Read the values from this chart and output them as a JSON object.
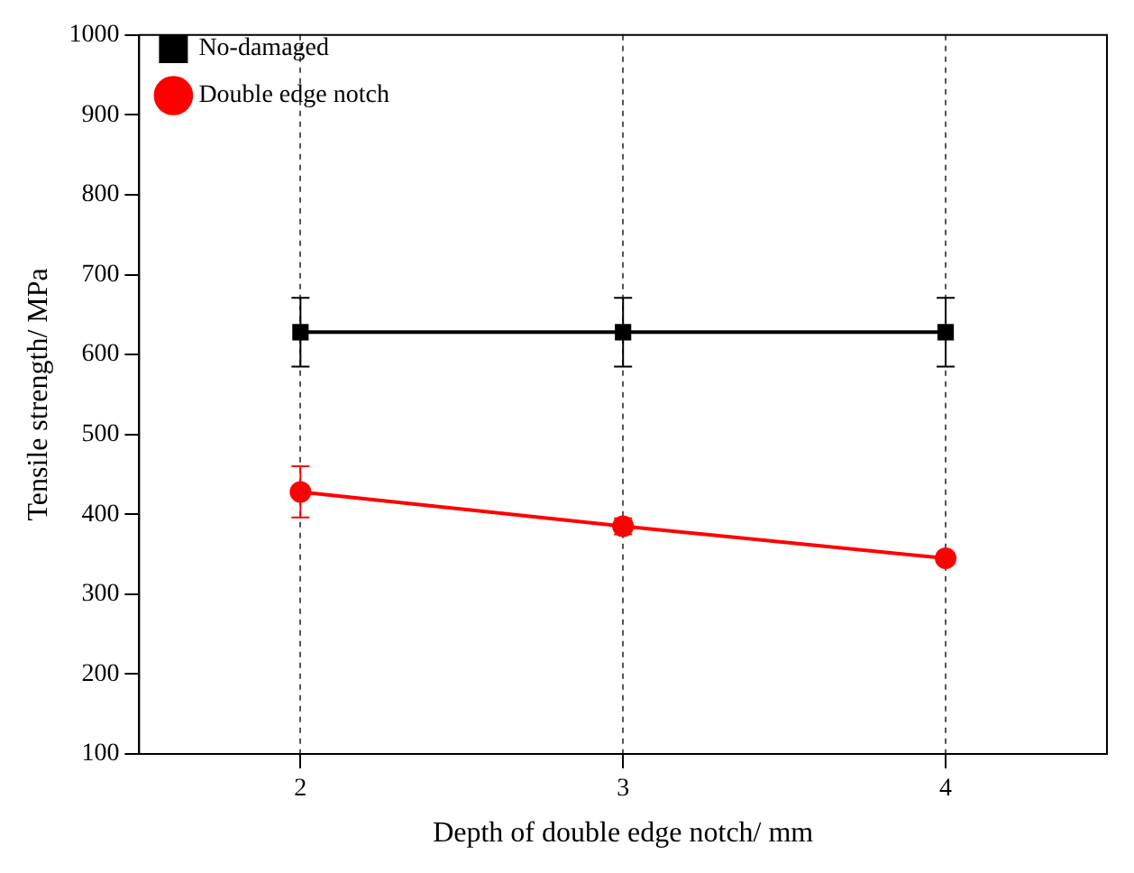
{
  "chart_data": {
    "type": "line",
    "xlabel": "Depth of double edge notch/ mm",
    "ylabel": "Tensile strength/ MPa",
    "x": [
      2,
      3,
      4
    ],
    "series": [
      {
        "name": "No-damaged",
        "color": "#000000",
        "marker": "square",
        "values": [
          628,
          628,
          628
        ],
        "errors": [
          43,
          43,
          43
        ]
      },
      {
        "name": "Double edge notch",
        "color": "#ff0000",
        "marker": "circle",
        "values": [
          428,
          385,
          345
        ],
        "errors": [
          32,
          10,
          null
        ]
      }
    ],
    "xlim": [
      1.5,
      4.5
    ],
    "xticks": [
      2,
      3,
      4
    ],
    "ylim": [
      100,
      1000
    ],
    "yticks": [
      100,
      200,
      300,
      400,
      500,
      600,
      700,
      800,
      900,
      1000
    ],
    "grid": "x",
    "legend": "top left"
  }
}
